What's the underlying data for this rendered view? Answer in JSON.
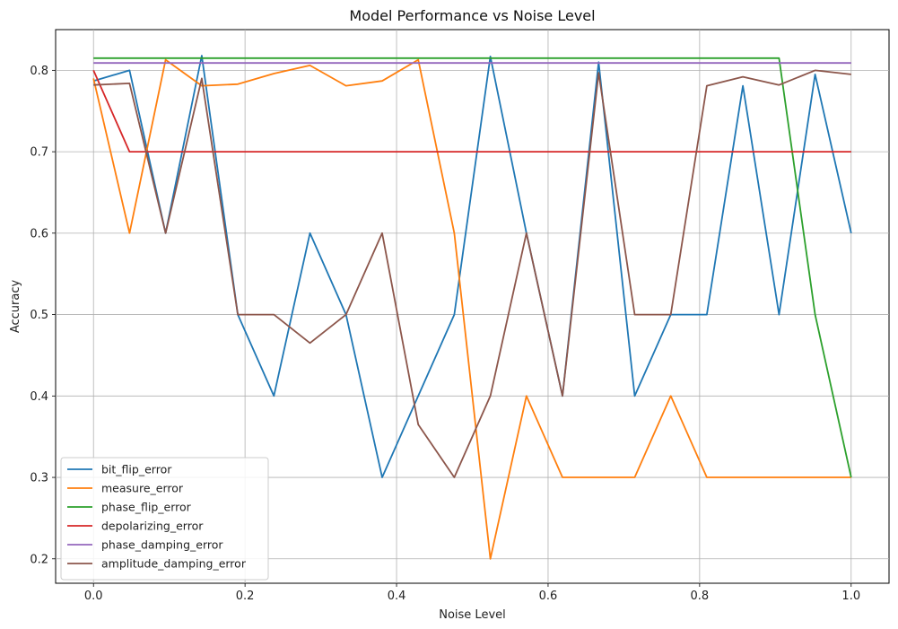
{
  "chart_data": {
    "type": "line",
    "title": "Model Performance vs Noise Level",
    "xlabel": "Noise Level",
    "ylabel": "Accuracy",
    "xlim": [
      -0.05,
      1.05
    ],
    "ylim": [
      0.17,
      0.85
    ],
    "xticks": [
      0.0,
      0.2,
      0.4,
      0.6,
      0.8,
      1.0
    ],
    "xtick_labels": [
      "0.0",
      "0.2",
      "0.4",
      "0.6",
      "0.8",
      "1.0"
    ],
    "yticks": [
      0.2,
      0.3,
      0.4,
      0.5,
      0.6,
      0.7,
      0.8
    ],
    "ytick_labels": [
      "0.2",
      "0.3",
      "0.4",
      "0.5",
      "0.6",
      "0.7",
      "0.8"
    ],
    "grid": true,
    "legend_position": "lower-left",
    "x": [
      0.0,
      0.0476,
      0.0952,
      0.1429,
      0.1905,
      0.2381,
      0.2857,
      0.3333,
      0.381,
      0.4286,
      0.4762,
      0.5238,
      0.5714,
      0.619,
      0.6667,
      0.7143,
      0.7619,
      0.8095,
      0.8571,
      0.9048,
      0.9524,
      1.0
    ],
    "series": [
      {
        "name": "bit_flip_error",
        "color": "#1f77b4",
        "values": [
          0.787,
          0.8,
          0.6,
          0.818,
          0.5,
          0.4,
          0.6,
          0.5,
          0.3,
          0.4,
          0.5,
          0.817,
          0.6,
          0.4,
          0.81,
          0.4,
          0.5,
          0.5,
          0.781,
          0.5,
          0.795,
          0.6
        ]
      },
      {
        "name": "measure_error",
        "color": "#ff7f0e",
        "values": [
          0.79,
          0.6,
          0.813,
          0.781,
          0.783,
          0.796,
          0.806,
          0.781,
          0.787,
          0.813,
          0.6,
          0.2,
          0.4,
          0.3,
          0.3,
          0.3,
          0.4,
          0.3,
          0.3,
          0.3,
          0.3,
          0.3
        ]
      },
      {
        "name": "phase_flip_error",
        "color": "#2ca02c",
        "values": [
          0.815,
          0.815,
          0.815,
          0.815,
          0.815,
          0.815,
          0.815,
          0.815,
          0.815,
          0.815,
          0.815,
          0.815,
          0.815,
          0.815,
          0.815,
          0.815,
          0.815,
          0.815,
          0.815,
          0.815,
          0.5,
          0.3
        ]
      },
      {
        "name": "depolarizing_error",
        "color": "#d62728",
        "values": [
          0.8,
          0.7,
          0.7,
          0.7,
          0.7,
          0.7,
          0.7,
          0.7,
          0.7,
          0.7,
          0.7,
          0.7,
          0.7,
          0.7,
          0.7,
          0.7,
          0.7,
          0.7,
          0.7,
          0.7,
          0.7,
          0.7
        ]
      },
      {
        "name": "phase_damping_error",
        "color": "#9467bd",
        "values": [
          0.809,
          0.809,
          0.809,
          0.809,
          0.809,
          0.809,
          0.809,
          0.809,
          0.809,
          0.809,
          0.809,
          0.809,
          0.809,
          0.809,
          0.809,
          0.809,
          0.809,
          0.809,
          0.809,
          0.809,
          0.809,
          0.809
        ]
      },
      {
        "name": "amplitude_damping_error",
        "color": "#8c564b",
        "values": [
          0.782,
          0.784,
          0.6,
          0.79,
          0.5,
          0.5,
          0.465,
          0.5,
          0.6,
          0.365,
          0.3,
          0.4,
          0.6,
          0.4,
          0.797,
          0.5,
          0.5,
          0.781,
          0.792,
          0.782,
          0.8,
          0.795
        ]
      }
    ]
  }
}
